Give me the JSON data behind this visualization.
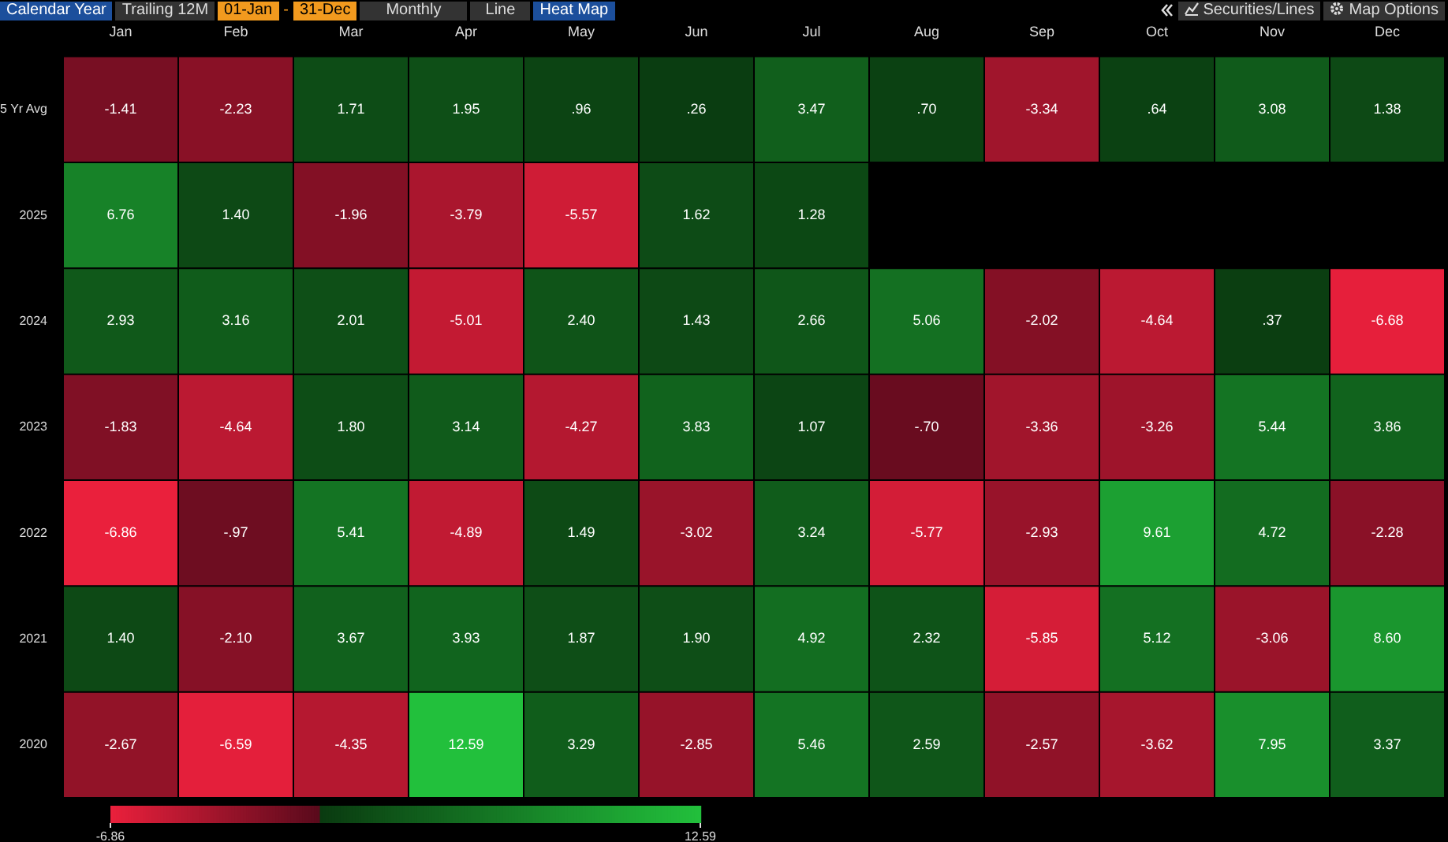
{
  "chart_data": {
    "type": "heatmap",
    "categories": [
      "Jan",
      "Feb",
      "Mar",
      "Apr",
      "May",
      "Jun",
      "Jul",
      "Aug",
      "Sep",
      "Oct",
      "Nov",
      "Dec"
    ],
    "y_categories": [
      "5 Yr Avg",
      "2025",
      "2024",
      "2023",
      "2022",
      "2021",
      "2020"
    ],
    "cells": [
      [
        -1.41,
        -2.23,
        1.71,
        1.95,
        0.96,
        0.26,
        3.47,
        0.7,
        -3.34,
        0.64,
        3.08,
        1.38
      ],
      [
        6.76,
        1.4,
        -1.96,
        -3.79,
        -5.57,
        1.62,
        1.28,
        null,
        null,
        null,
        null,
        null
      ],
      [
        2.93,
        3.16,
        2.01,
        -5.01,
        2.4,
        1.43,
        2.66,
        5.06,
        -2.02,
        -4.64,
        0.37,
        -6.68
      ],
      [
        -1.83,
        -4.64,
        1.8,
        3.14,
        -4.27,
        3.83,
        1.07,
        -0.7,
        -3.36,
        -3.26,
        5.44,
        3.86
      ],
      [
        -6.86,
        -0.97,
        5.41,
        -4.89,
        1.49,
        -3.02,
        3.24,
        -5.77,
        -2.93,
        9.61,
        4.72,
        -2.28
      ],
      [
        1.4,
        -2.1,
        3.67,
        3.93,
        1.87,
        1.9,
        4.92,
        2.32,
        -5.85,
        5.12,
        -3.06,
        8.6
      ],
      [
        -2.67,
        -6.59,
        -4.35,
        12.59,
        3.29,
        -2.85,
        5.46,
        2.59,
        -2.57,
        -3.62,
        7.95,
        3.37
      ]
    ],
    "cell_labels": [
      [
        "-1.41",
        "-2.23",
        "1.71",
        "1.95",
        ".96",
        ".26",
        "3.47",
        ".70",
        "-3.34",
        ".64",
        "3.08",
        "1.38"
      ],
      [
        "6.76",
        "1.40",
        "-1.96",
        "-3.79",
        "-5.57",
        "1.62",
        "1.28",
        null,
        null,
        null,
        null,
        null
      ],
      [
        "2.93",
        "3.16",
        "2.01",
        "-5.01",
        "2.40",
        "1.43",
        "2.66",
        "5.06",
        "-2.02",
        "-4.64",
        ".37",
        "-6.68"
      ],
      [
        "-1.83",
        "-4.64",
        "1.80",
        "3.14",
        "-4.27",
        "3.83",
        "1.07",
        "-.70",
        "-3.36",
        "-3.26",
        "5.44",
        "3.86"
      ],
      [
        "-6.86",
        "-.97",
        "5.41",
        "-4.89",
        "1.49",
        "-3.02",
        "3.24",
        "-5.77",
        "-2.93",
        "9.61",
        "4.72",
        "-2.28"
      ],
      [
        "1.40",
        "-2.10",
        "3.67",
        "3.93",
        "1.87",
        "1.90",
        "4.92",
        "2.32",
        "-5.85",
        "5.12",
        "-3.06",
        "8.60"
      ],
      [
        "-2.67",
        "-6.59",
        "-4.35",
        "12.59",
        "3.29",
        "-2.85",
        "5.46",
        "2.59",
        "-2.57",
        "-3.62",
        "7.95",
        "3.37"
      ]
    ],
    "clim": [
      -6.86,
      12.59
    ],
    "cticks": [
      -6.86,
      12.59
    ],
    "annotations": [
      "Calendar Year",
      "Trailing 12M",
      "01-Jan",
      "-",
      "31-Dec",
      "Monthly",
      "Line",
      "Heat Map",
      "Securities/Lines",
      "Map Options"
    ]
  }
}
